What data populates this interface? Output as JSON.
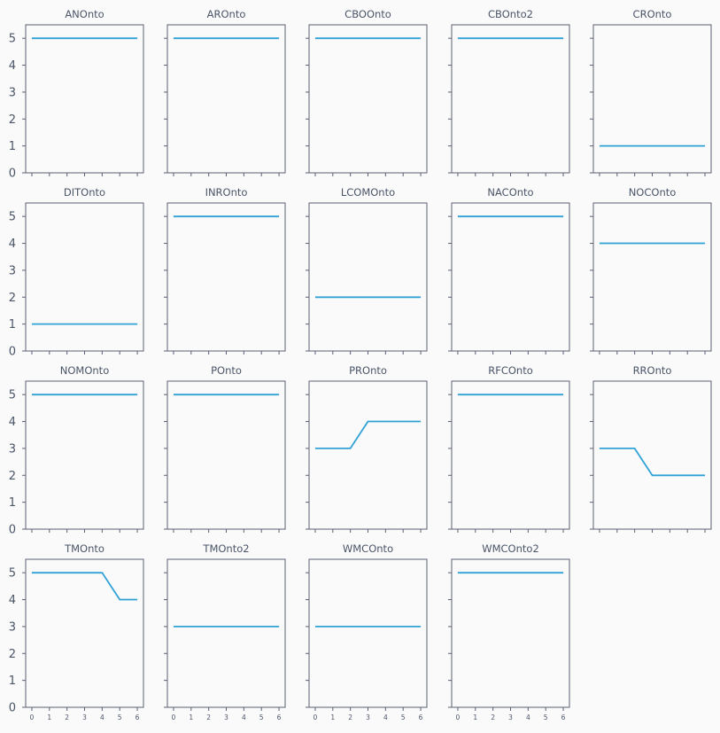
{
  "chart_data": {
    "type": "line",
    "layout": "small-multiples",
    "grid": false,
    "line_color": "#31a2d6",
    "x": [
      0,
      1,
      2,
      3,
      4,
      5,
      6
    ],
    "xlim": [
      -0.35,
      6.35
    ],
    "ylim": [
      0,
      5.5
    ],
    "yticks": [
      0,
      1,
      2,
      3,
      4,
      5
    ],
    "xticks": [
      0,
      1,
      2,
      3,
      4,
      5,
      6
    ],
    "panels": [
      {
        "title": "ANOnto",
        "values": [
          5,
          5,
          5,
          5,
          5,
          5,
          5
        ]
      },
      {
        "title": "AROnto",
        "values": [
          5,
          5,
          5,
          5,
          5,
          5,
          5
        ]
      },
      {
        "title": "CBOOnto",
        "values": [
          5,
          5,
          5,
          5,
          5,
          5,
          5
        ]
      },
      {
        "title": "CBOnto2",
        "values": [
          5,
          5,
          5,
          5,
          5,
          5,
          5
        ]
      },
      {
        "title": "CROnto",
        "values": [
          1,
          1,
          1,
          1,
          1,
          1,
          1
        ]
      },
      {
        "title": "DITOnto",
        "values": [
          1,
          1,
          1,
          1,
          1,
          1,
          1
        ]
      },
      {
        "title": "INROnto",
        "values": [
          5,
          5,
          5,
          5,
          5,
          5,
          5
        ]
      },
      {
        "title": "LCOMOnto",
        "values": [
          2,
          2,
          2,
          2,
          2,
          2,
          2
        ]
      },
      {
        "title": "NACOnto",
        "values": [
          5,
          5,
          5,
          5,
          5,
          5,
          5
        ]
      },
      {
        "title": "NOCOnto",
        "values": [
          4,
          4,
          4,
          4,
          4,
          4,
          4
        ]
      },
      {
        "title": "NOMOnto",
        "values": [
          5,
          5,
          5,
          5,
          5,
          5,
          5
        ]
      },
      {
        "title": "POnto",
        "values": [
          5,
          5,
          5,
          5,
          5,
          5,
          5
        ]
      },
      {
        "title": "PROnto",
        "values": [
          3,
          3,
          3,
          4,
          4,
          4,
          4
        ]
      },
      {
        "title": "RFCOnto",
        "values": [
          5,
          5,
          5,
          5,
          5,
          5,
          5
        ]
      },
      {
        "title": "RROnto",
        "values": [
          3,
          3,
          3,
          2,
          2,
          2,
          2
        ]
      },
      {
        "title": "TMOnto",
        "values": [
          5,
          5,
          5,
          5,
          5,
          4,
          4
        ]
      },
      {
        "title": "TMOnto2",
        "values": [
          3,
          3,
          3,
          3,
          3,
          3,
          3
        ]
      },
      {
        "title": "WMCOnto",
        "values": [
          3,
          3,
          3,
          3,
          3,
          3,
          3
        ]
      },
      {
        "title": "WMCOnto2",
        "values": [
          5,
          5,
          5,
          5,
          5,
          5,
          5
        ]
      }
    ]
  }
}
